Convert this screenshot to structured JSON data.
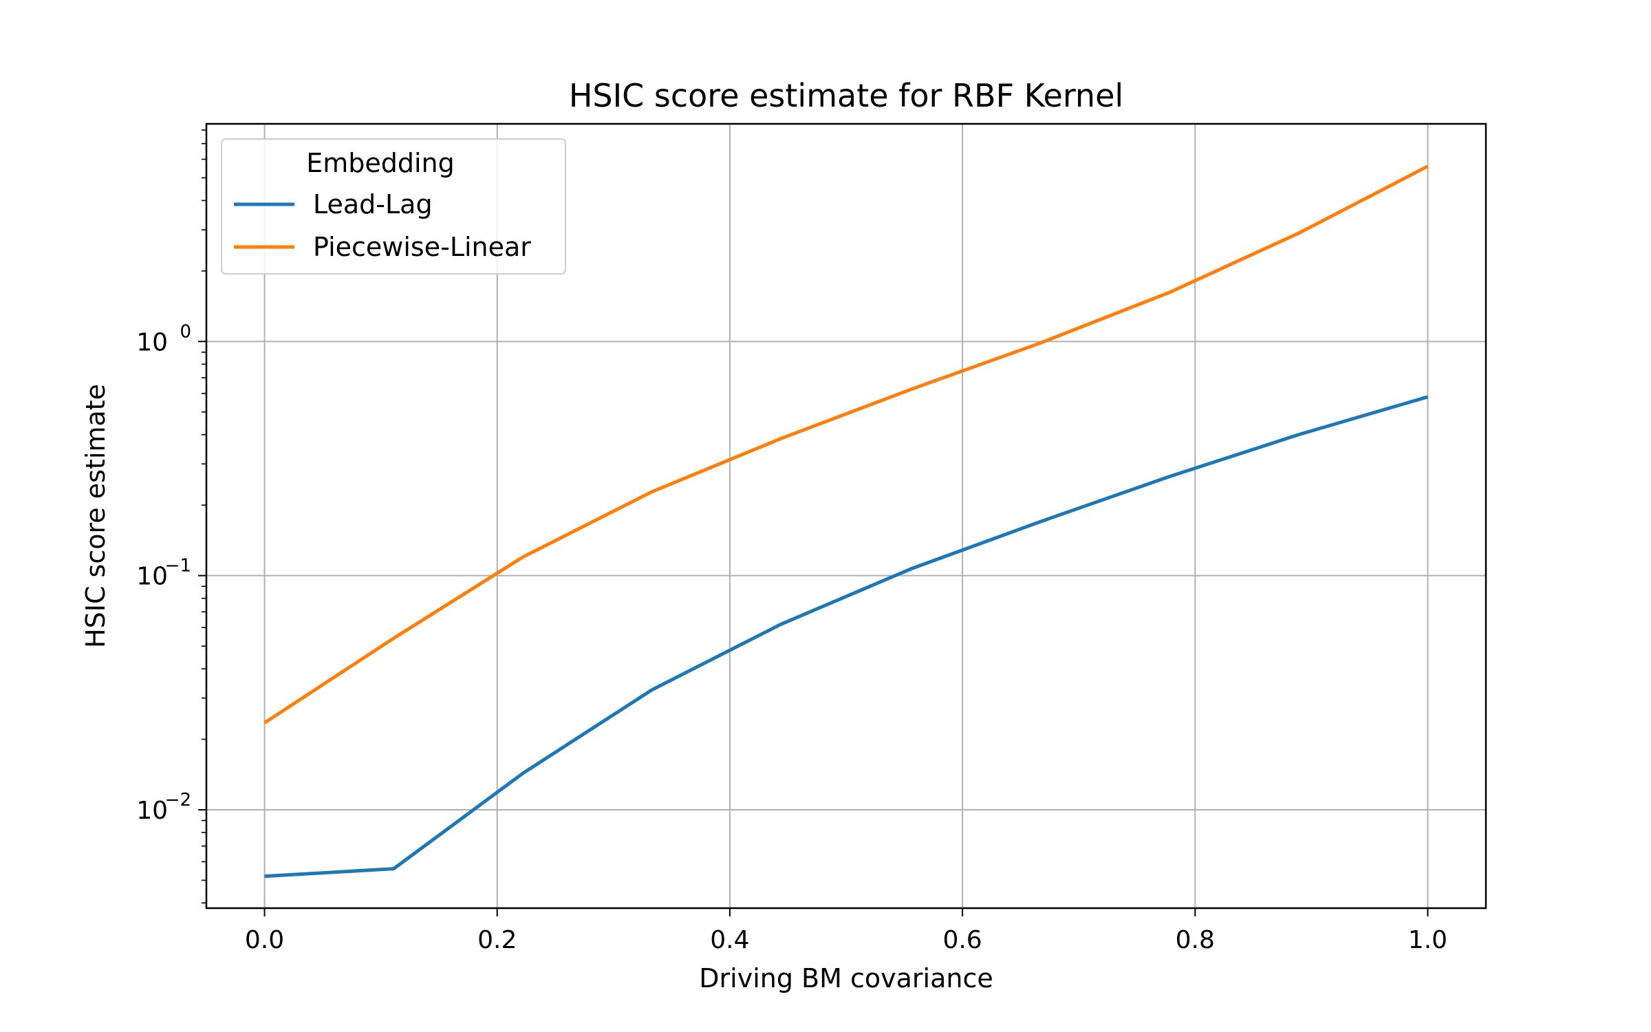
{
  "chart_data": {
    "type": "line",
    "title": "HSIC score estimate for RBF Kernel",
    "xlabel": "Driving BM covariance",
    "ylabel": "HSIC score estimate",
    "xlim": [
      -0.05,
      1.05
    ],
    "ylim": [
      0.0038,
      8.5
    ],
    "yscale": "log",
    "grid": true,
    "x_ticks": [
      {
        "value": 0.0,
        "label": "0.0"
      },
      {
        "value": 0.2,
        "label": "0.2"
      },
      {
        "value": 0.4,
        "label": "0.4"
      },
      {
        "value": 0.6,
        "label": "0.6"
      },
      {
        "value": 0.8,
        "label": "0.8"
      },
      {
        "value": 1.0,
        "label": "1.0"
      }
    ],
    "y_ticks": [
      {
        "value": 0.01,
        "base": "10",
        "exponent": "−2"
      },
      {
        "value": 0.1,
        "base": "10",
        "exponent": "−1"
      },
      {
        "value": 1,
        "base": "10",
        "exponent": "0"
      }
    ],
    "legend": {
      "title": "Embedding",
      "placement": "upper-left"
    },
    "x": [
      0.0,
      0.111,
      0.222,
      0.333,
      0.444,
      0.556,
      0.667,
      0.778,
      0.889,
      1.0
    ],
    "series": [
      {
        "name": "Lead-Lag",
        "color": "#1f77b4",
        "values": [
          0.0052,
          0.0056,
          0.0143,
          0.0325,
          0.062,
          0.107,
          0.17,
          0.265,
          0.4,
          0.58
        ]
      },
      {
        "name": "Piecewise-Linear",
        "color": "#ff7f0e",
        "values": [
          0.0235,
          0.054,
          0.12,
          0.228,
          0.385,
          0.625,
          0.985,
          1.62,
          2.9,
          5.6
        ]
      }
    ]
  }
}
